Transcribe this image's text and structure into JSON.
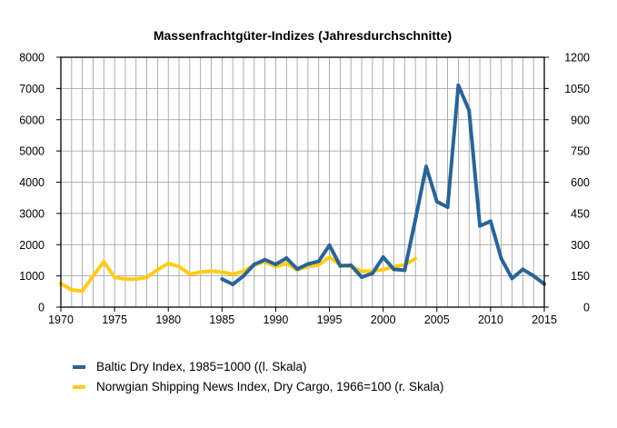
{
  "chart_data": {
    "type": "line",
    "title": "Massenfrachtgüter-Indizes (Jahresdurchschnitte)",
    "xlim": [
      1970,
      2015
    ],
    "x_ticks": [
      1970,
      1975,
      1980,
      1985,
      1990,
      1995,
      2000,
      2005,
      2010,
      2015
    ],
    "y_left": {
      "lim": [
        0,
        8000
      ],
      "ticks": [
        0,
        1000,
        2000,
        3000,
        4000,
        5000,
        6000,
        7000,
        8000
      ]
    },
    "y_right": {
      "lim": [
        0,
        1200
      ],
      "ticks": [
        0,
        150,
        300,
        450,
        600,
        750,
        900,
        1050,
        1200
      ]
    },
    "grid": true,
    "legend_position": "bottom",
    "series": [
      {
        "name": "Baltic Dry Index, 1985=1000  ((l. Skala)",
        "axis": "left",
        "color": "#2a6496",
        "x": [
          1985,
          1986,
          1987,
          1988,
          1989,
          1990,
          1991,
          1992,
          1993,
          1994,
          1995,
          1996,
          1997,
          1998,
          1999,
          2000,
          2001,
          2002,
          2003,
          2004,
          2005,
          2006,
          2007,
          2008,
          2009,
          2010,
          2011,
          2012,
          2013,
          2014,
          2015
        ],
        "values": [
          900,
          730,
          1000,
          1370,
          1520,
          1370,
          1570,
          1220,
          1380,
          1470,
          1980,
          1320,
          1340,
          960,
          1080,
          1600,
          1210,
          1180,
          2800,
          4500,
          3380,
          3200,
          7100,
          6300,
          2600,
          2750,
          1550,
          920,
          1210,
          1000,
          740
        ]
      },
      {
        "name": "Norwgian Shipping News Index, Dry Cargo, 1966=100 (r. Skala)",
        "axis": "right",
        "color": "#ffcc1a",
        "x": [
          1970,
          1971,
          1972,
          1973,
          1974,
          1975,
          1976,
          1977,
          1978,
          1979,
          1980,
          1981,
          1982,
          1983,
          1984,
          1985,
          1986,
          1987,
          1988,
          1989,
          1990,
          1991,
          1992,
          1993,
          1994,
          1995,
          1996,
          1997,
          1998,
          1999,
          2000,
          2001,
          2002,
          2003
        ],
        "values": [
          113,
          83,
          77,
          150,
          218,
          143,
          135,
          135,
          143,
          180,
          210,
          195,
          158,
          168,
          173,
          168,
          158,
          172,
          203,
          218,
          195,
          210,
          180,
          195,
          203,
          240,
          203,
          195,
          173,
          173,
          180,
          195,
          203,
          233
        ]
      }
    ]
  }
}
